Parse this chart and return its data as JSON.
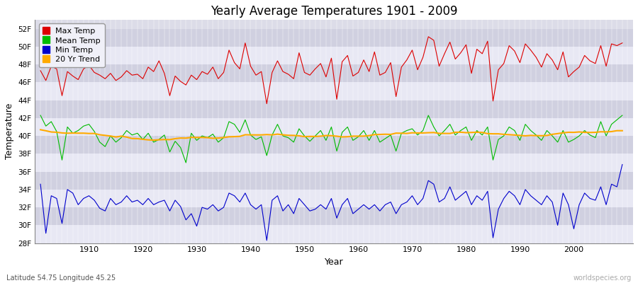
{
  "title": "Yearly Average Temperatures 1901 - 2009",
  "xlabel": "Year",
  "ylabel": "Temperature",
  "start_year": 1901,
  "end_year": 2009,
  "lat_lon_label": "Latitude 54.75 Longitude 45.25",
  "source_label": "worldspecies.org",
  "plot_bg_color": "#dcdce8",
  "fig_bg_color": "#ffffff",
  "band_color_light": "#e8e8f4",
  "band_color_dark": "#d0d0e0",
  "grid_color": "#ffffff",
  "max_temp_color": "#dd0000",
  "mean_temp_color": "#00bb00",
  "min_temp_color": "#0000cc",
  "trend_color": "#ffaa00",
  "legend_labels": [
    "Max Temp",
    "Mean Temp",
    "Min Temp",
    "20 Yr Trend"
  ],
  "ylim_min": 28,
  "ylim_max": 53,
  "yticks": [
    28,
    30,
    32,
    34,
    36,
    38,
    40,
    42,
    44,
    46,
    48,
    50,
    52
  ],
  "max_temps": [
    47.3,
    46.2,
    47.8,
    47.5,
    44.5,
    47.2,
    46.7,
    46.3,
    47.5,
    47.9,
    47.1,
    46.8,
    46.4,
    47.0,
    46.2,
    46.6,
    47.3,
    46.8,
    46.9,
    46.4,
    47.7,
    47.2,
    48.4,
    47.0,
    44.5,
    46.7,
    46.1,
    45.7,
    46.8,
    46.3,
    47.2,
    46.9,
    47.7,
    46.4,
    47.1,
    49.6,
    48.2,
    47.5,
    50.4,
    47.8,
    46.8,
    47.2,
    43.6,
    47.1,
    48.4,
    47.2,
    46.9,
    46.4,
    49.3,
    47.1,
    46.8,
    47.5,
    48.1,
    46.6,
    48.7,
    44.1,
    48.3,
    49.0,
    46.7,
    47.1,
    48.5,
    47.2,
    49.4,
    46.8,
    47.1,
    48.2,
    44.4,
    47.7,
    48.5,
    49.6,
    47.4,
    48.8,
    51.1,
    50.7,
    47.8,
    49.2,
    50.5,
    48.6,
    49.3,
    50.2,
    47.0,
    49.7,
    49.2,
    50.6,
    43.9,
    47.4,
    48.1,
    50.1,
    49.5,
    48.2,
    50.3,
    49.6,
    48.8,
    47.7,
    49.2,
    48.5,
    47.4,
    49.4,
    46.6,
    47.2,
    47.7,
    49.0,
    48.4,
    48.1,
    50.1,
    47.8,
    50.3,
    50.1,
    50.4
  ],
  "mean_temps": [
    42.3,
    41.1,
    41.6,
    40.5,
    37.3,
    41.0,
    40.3,
    40.6,
    41.1,
    41.3,
    40.5,
    39.3,
    38.8,
    40.0,
    39.3,
    39.8,
    40.6,
    40.1,
    40.3,
    39.6,
    40.3,
    39.3,
    39.6,
    40.1,
    38.2,
    39.4,
    38.7,
    37.0,
    40.3,
    39.5,
    40.0,
    39.8,
    40.2,
    39.3,
    39.8,
    41.6,
    41.3,
    40.4,
    41.8,
    40.1,
    39.6,
    39.9,
    37.8,
    40.1,
    41.3,
    40.0,
    39.8,
    39.3,
    40.8,
    40.0,
    39.4,
    40.0,
    40.6,
    39.5,
    41.0,
    38.3,
    40.4,
    41.0,
    39.5,
    39.9,
    40.6,
    39.5,
    40.6,
    39.3,
    39.7,
    40.1,
    38.3,
    40.3,
    40.6,
    40.8,
    40.1,
    40.6,
    42.3,
    41.0,
    40.0,
    40.6,
    41.3,
    40.1,
    40.6,
    41.0,
    39.5,
    40.6,
    40.1,
    41.0,
    37.3,
    39.6,
    40.0,
    41.0,
    40.6,
    39.5,
    41.3,
    40.6,
    40.1,
    39.5,
    40.6,
    40.0,
    39.3,
    40.6,
    39.3,
    39.6,
    40.0,
    40.6,
    40.1,
    39.8,
    41.6,
    40.0,
    41.3,
    41.8,
    42.3
  ],
  "min_temps": [
    34.6,
    29.1,
    33.3,
    33.0,
    30.2,
    34.0,
    33.6,
    32.3,
    33.0,
    33.3,
    32.8,
    31.9,
    31.6,
    33.0,
    32.3,
    32.6,
    33.3,
    32.6,
    32.8,
    32.3,
    33.0,
    32.3,
    32.6,
    32.8,
    31.6,
    32.8,
    32.1,
    30.6,
    31.3,
    29.9,
    32.0,
    31.8,
    32.3,
    31.6,
    32.0,
    33.6,
    33.3,
    32.6,
    33.6,
    32.3,
    31.8,
    32.3,
    28.3,
    32.8,
    33.3,
    31.6,
    32.3,
    31.3,
    33.0,
    32.3,
    31.6,
    31.8,
    32.3,
    31.8,
    33.0,
    30.8,
    32.3,
    33.0,
    31.3,
    31.8,
    32.3,
    31.8,
    32.3,
    31.6,
    32.3,
    32.6,
    31.3,
    32.3,
    32.6,
    33.3,
    32.3,
    33.0,
    35.0,
    34.6,
    32.6,
    33.0,
    34.3,
    32.8,
    33.3,
    33.8,
    32.3,
    33.3,
    32.8,
    33.8,
    28.6,
    31.8,
    33.0,
    33.8,
    33.3,
    32.3,
    34.0,
    33.3,
    32.8,
    32.3,
    33.3,
    32.6,
    30.0,
    33.6,
    32.3,
    29.6,
    32.3,
    33.6,
    33.0,
    32.8,
    34.3,
    32.3,
    34.6,
    34.3,
    36.8
  ]
}
